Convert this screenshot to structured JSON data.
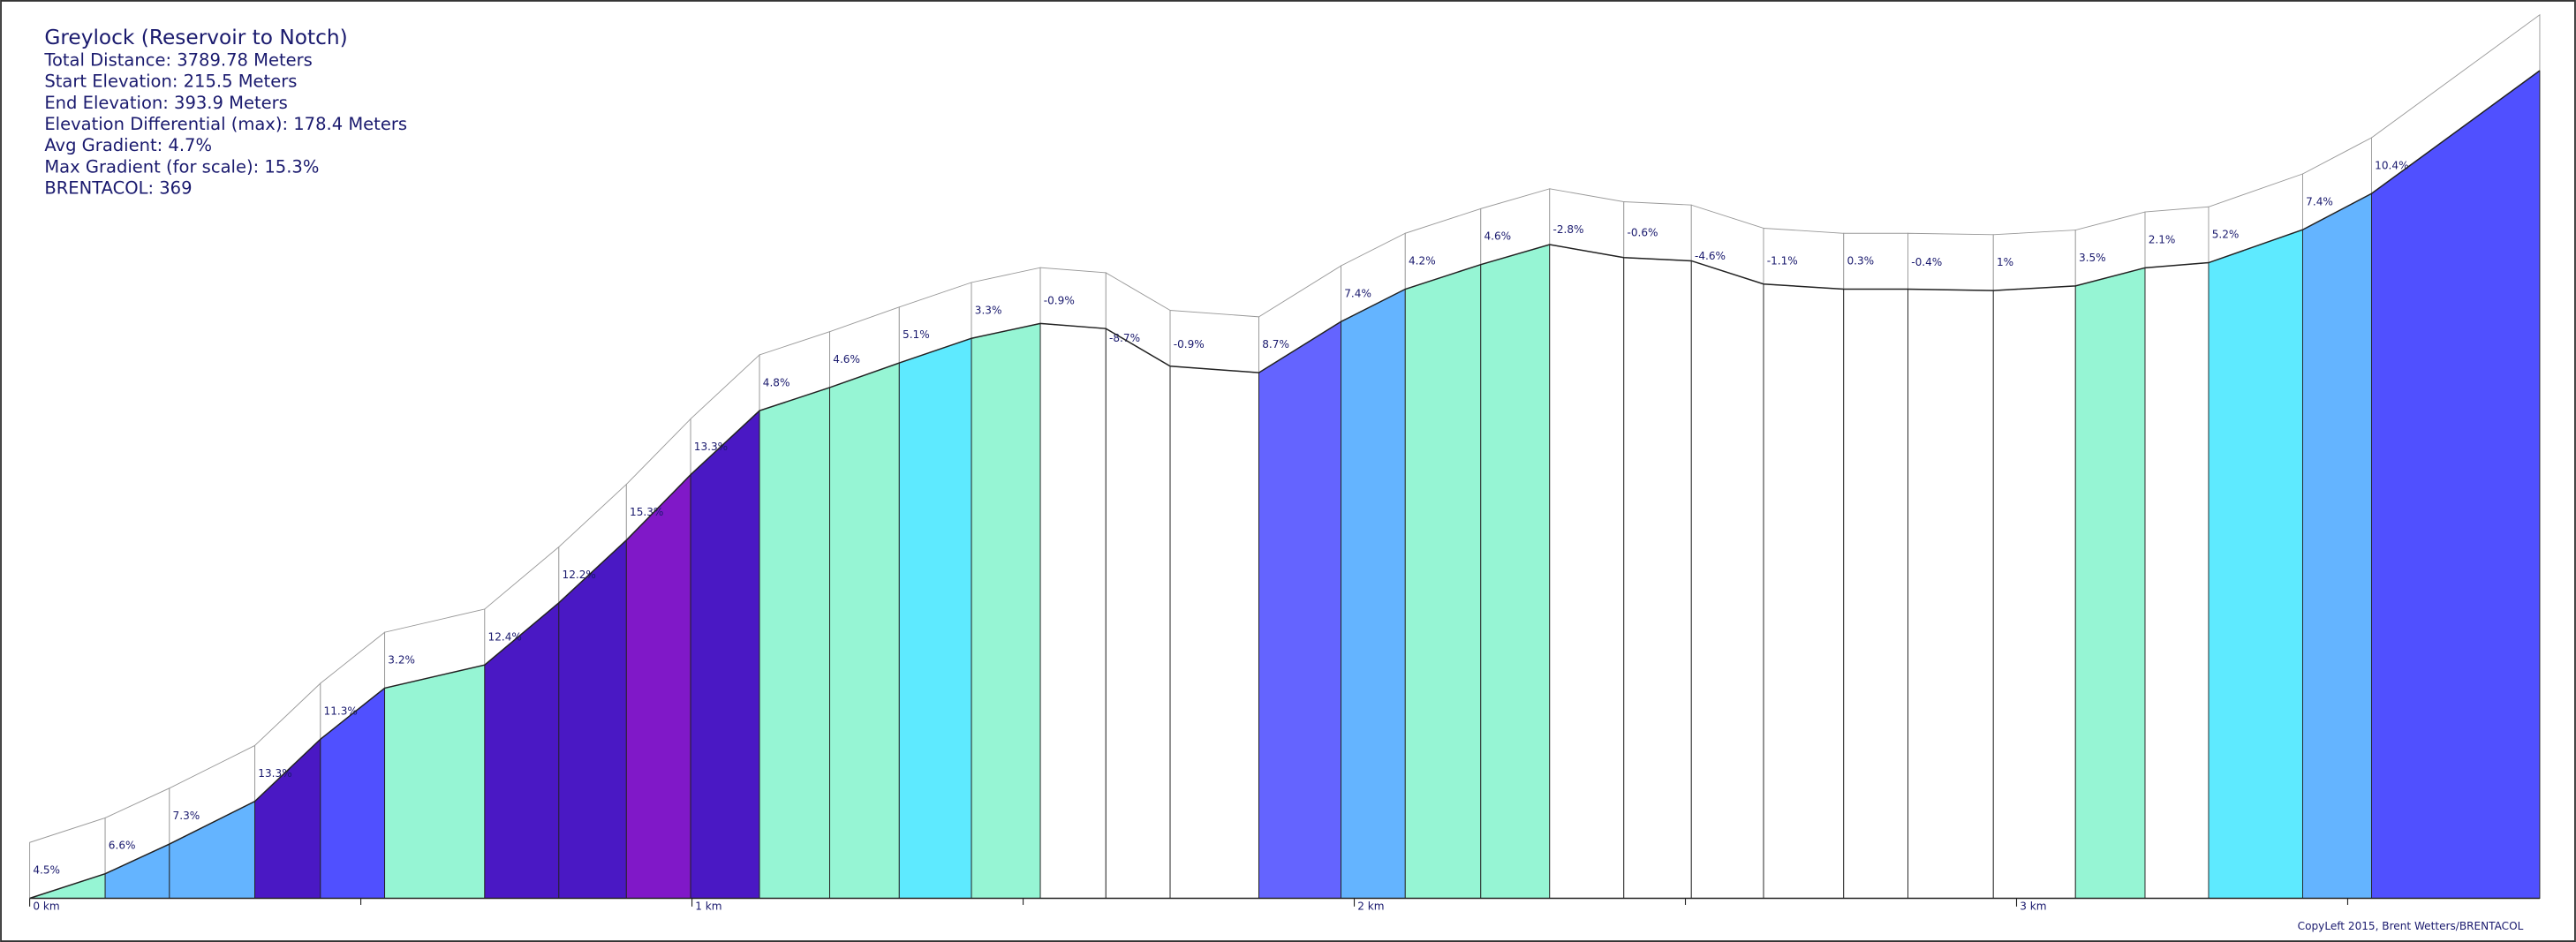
{
  "chart_data": {
    "type": "area",
    "title": "Greylock (Reservoir to Notch)",
    "stats": [
      "Total Distance: 3789.78 Meters",
      "Start Elevation: 215.5 Meters",
      "End Elevation: 393.9 Meters",
      "Elevation Differential (max): 178.4 Meters",
      "Avg Gradient: 4.7%",
      "Max Gradient (for scale): 15.3%",
      "BRENTACOL: 369"
    ],
    "footer": "CopyLeft 2015, Brent Wetters/BRENTACOL",
    "x": [
      0,
      0.114,
      0.211,
      0.34,
      0.439,
      0.536,
      0.687,
      0.799,
      0.901,
      0.998,
      1.102,
      1.208,
      1.313,
      1.422,
      1.526,
      1.625,
      1.722,
      1.856,
      1.98,
      2.077,
      2.191,
      2.295,
      2.407,
      2.509,
      2.618,
      2.739,
      2.836,
      2.965,
      3.089,
      3.194,
      3.29,
      3.432,
      3.536,
      3.79
    ],
    "values": [
      215.5,
      220.8,
      227.2,
      236.4,
      249.8,
      260.8,
      265.8,
      279.2,
      292.7,
      306.8,
      320.6,
      325.6,
      330.9,
      336.2,
      339.4,
      338.3,
      330.2,
      328.8,
      339.8,
      346.8,
      352.1,
      356.4,
      353.6,
      352.9,
      347.9,
      346.8,
      346.8,
      346.5,
      347.5,
      351.4,
      352.5,
      359.6,
      367.4,
      393.9
    ],
    "gradients": [
      4.5,
      6.6,
      7.3,
      13.3,
      11.3,
      3.2,
      12.4,
      12.2,
      15.3,
      13.3,
      4.8,
      4.6,
      5.1,
      3.3,
      -0.9,
      -8.7,
      -0.9,
      8.7,
      7.4,
      4.2,
      4.6,
      -2.8,
      -0.6,
      -4.6,
      -1.1,
      0.3,
      -0.4,
      1,
      3.5,
      2.1,
      5.2,
      7.4,
      10.4
    ],
    "gradient_labels": [
      "4.5%",
      "6.6%",
      "7.3%",
      "13.3%",
      "11.3%",
      "3.2%",
      "12.4%",
      "12.2%",
      "15.3%",
      "13.3%",
      "4.8%",
      "4.6%",
      "5.1%",
      "3.3%",
      "-0.9%",
      "-8.7%",
      "-0.9%",
      "8.7%",
      "7.4%",
      "4.2%",
      "4.6%",
      "-2.8%",
      "-0.6%",
      "-4.6%",
      "-1.1%",
      "0.3%",
      "-0.4%",
      "1%",
      "3.5%",
      "2.1%",
      "5.2%",
      "7.4%",
      "10.4%"
    ],
    "segment_colors": [
      "#96f5d4",
      "#64b4ff",
      "#64b4ff",
      "#4a18c4",
      "#5050ff",
      "#96f5d4",
      "#4a18c4",
      "#4a18c4",
      "#8018c8",
      "#4a18c4",
      "#96f5d4",
      "#96f5d4",
      "#5eeaff",
      "#96f5d4",
      "#ffffff",
      "#ffffff",
      "#ffffff",
      "#6464ff",
      "#64b4ff",
      "#96f5d4",
      "#96f5d4",
      "#ffffff",
      "#ffffff",
      "#ffffff",
      "#ffffff",
      "#ffffff",
      "#ffffff",
      "#ffffff",
      "#96f5d4",
      "#ffffff",
      "#5eeaff",
      "#64b4ff",
      "#5050ff"
    ],
    "xlim": [
      0,
      3.79
    ],
    "ylim": [
      215.5,
      393.9
    ],
    "xticks": [
      {
        "value": 0,
        "label": "0 km"
      },
      {
        "value": 1,
        "label": "1 km"
      },
      {
        "value": 2,
        "label": "2 km"
      },
      {
        "value": 3,
        "label": "3 km"
      }
    ],
    "xminor_ticks": [
      0.5,
      1.5,
      2.5,
      3.5
    ]
  }
}
